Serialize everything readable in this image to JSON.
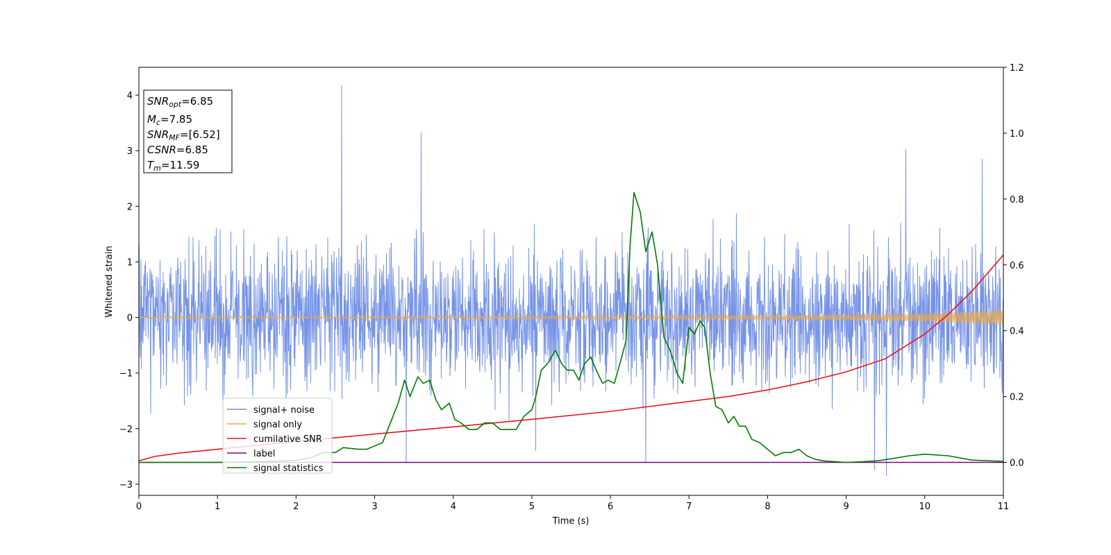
{
  "chart_data": {
    "type": "line",
    "xlabel": "Time (s)",
    "ylabel": "Whitened strain",
    "xlim": [
      0,
      11
    ],
    "ylim": [
      -3.2,
      4.5
    ],
    "y2lim": [
      -0.1,
      1.2
    ],
    "x_ticks": [
      0,
      1,
      2,
      3,
      4,
      5,
      6,
      7,
      8,
      9,
      10,
      11
    ],
    "y_ticks": [
      -3,
      -2,
      -1,
      0,
      1,
      2,
      3,
      4
    ],
    "y2_ticks": [
      0.0,
      0.2,
      0.4,
      0.6,
      0.8,
      1.0,
      1.2
    ],
    "grid": false,
    "legend_position": "lower-left",
    "info_box": {
      "lines": [
        {
          "sym": "SNR",
          "sub": "opt",
          "value": "=6.85"
        },
        {
          "sym": "M",
          "sub": "c",
          "value": "=7.85"
        },
        {
          "sym": "SNR",
          "sub": "MF",
          "value": "=[6.52]"
        },
        {
          "sym": "CSNR",
          "sub": "",
          "value": "=6.85"
        },
        {
          "sym": "T",
          "sub": "m",
          "value": "=11.59"
        }
      ]
    },
    "noise_spikes": [
      {
        "x": 2.58,
        "y": 4.17
      },
      {
        "x": 3.59,
        "y": 3.33
      },
      {
        "x": 9.76,
        "y": 3.03
      },
      {
        "x": 10.73,
        "y": 2.85
      },
      {
        "x": 9.51,
        "y": -2.85
      },
      {
        "x": 9.36,
        "y": -2.75
      },
      {
        "x": 3.4,
        "y": -2.62
      },
      {
        "x": 6.45,
        "y": -2.6
      },
      {
        "x": 5.05,
        "y": -2.4
      }
    ],
    "series": [
      {
        "name": "signal+ noise",
        "color": "#6f8de6",
        "axis": "left",
        "noise_std": 0.62,
        "envelope": 1.2
      },
      {
        "name": "signal only",
        "color": "#e8a94d",
        "axis": "left",
        "x": [
          0,
          2,
          4,
          6,
          7,
          8,
          9,
          9.5,
          10,
          10.5,
          11
        ],
        "amplitude": [
          0.02,
          0.02,
          0.025,
          0.03,
          0.035,
          0.04,
          0.05,
          0.06,
          0.08,
          0.11,
          0.15
        ]
      },
      {
        "name": "cumilative SNR",
        "color": "#e8141c",
        "axis": "right",
        "x": [
          0,
          0.2,
          0.5,
          1,
          2,
          3,
          4,
          5,
          6,
          7,
          7.5,
          8,
          8.5,
          9,
          9.5,
          10,
          10.3,
          10.6,
          10.8,
          11
        ],
        "values": [
          0.005,
          0.018,
          0.028,
          0.04,
          0.064,
          0.086,
          0.108,
          0.131,
          0.155,
          0.185,
          0.2,
          0.22,
          0.245,
          0.275,
          0.315,
          0.39,
          0.45,
          0.52,
          0.575,
          0.63
        ]
      },
      {
        "name": "label",
        "color": "#800080",
        "axis": "right",
        "x": [
          0,
          11
        ],
        "values": [
          0,
          0
        ]
      },
      {
        "name": "signal statistics",
        "color": "#007a00",
        "axis": "right",
        "x": [
          0,
          1,
          1.5,
          2,
          2.2,
          2.35,
          2.5,
          2.6,
          2.8,
          2.9,
          3.0,
          3.1,
          3.2,
          3.3,
          3.38,
          3.45,
          3.55,
          3.62,
          3.7,
          3.78,
          3.85,
          3.95,
          4.02,
          4.1,
          4.2,
          4.3,
          4.4,
          4.5,
          4.6,
          4.7,
          4.8,
          4.9,
          5.0,
          5.05,
          5.12,
          5.2,
          5.3,
          5.38,
          5.45,
          5.53,
          5.6,
          5.67,
          5.75,
          5.82,
          5.9,
          5.97,
          6.05,
          6.12,
          6.2,
          6.25,
          6.3,
          6.38,
          6.45,
          6.53,
          6.6,
          6.68,
          6.76,
          6.85,
          6.92,
          7.0,
          7.07,
          7.14,
          7.2,
          7.27,
          7.34,
          7.42,
          7.5,
          7.57,
          7.64,
          7.72,
          7.8,
          7.9,
          8.0,
          8.1,
          8.2,
          8.3,
          8.4,
          8.5,
          8.6,
          8.7,
          8.8,
          9.0,
          9.2,
          9.4,
          9.6,
          9.8,
          10.0,
          10.3,
          10.6,
          11.0
        ],
        "values": [
          0,
          0,
          0.002,
          0.006,
          0.015,
          0.03,
          0.03,
          0.045,
          0.04,
          0.04,
          0.05,
          0.06,
          0.12,
          0.18,
          0.25,
          0.2,
          0.26,
          0.24,
          0.25,
          0.19,
          0.16,
          0.18,
          0.13,
          0.12,
          0.1,
          0.1,
          0.12,
          0.12,
          0.1,
          0.1,
          0.1,
          0.14,
          0.16,
          0.2,
          0.28,
          0.3,
          0.34,
          0.3,
          0.28,
          0.28,
          0.25,
          0.3,
          0.32,
          0.28,
          0.24,
          0.25,
          0.24,
          0.3,
          0.37,
          0.66,
          0.82,
          0.76,
          0.64,
          0.7,
          0.6,
          0.38,
          0.34,
          0.27,
          0.24,
          0.41,
          0.39,
          0.43,
          0.41,
          0.27,
          0.17,
          0.16,
          0.12,
          0.14,
          0.11,
          0.11,
          0.07,
          0.06,
          0.04,
          0.02,
          0.03,
          0.03,
          0.04,
          0.02,
          0.01,
          0.005,
          0.003,
          0,
          0.002,
          0.005,
          0.012,
          0.02,
          0.025,
          0.02,
          0.007,
          0.003
        ]
      }
    ]
  }
}
